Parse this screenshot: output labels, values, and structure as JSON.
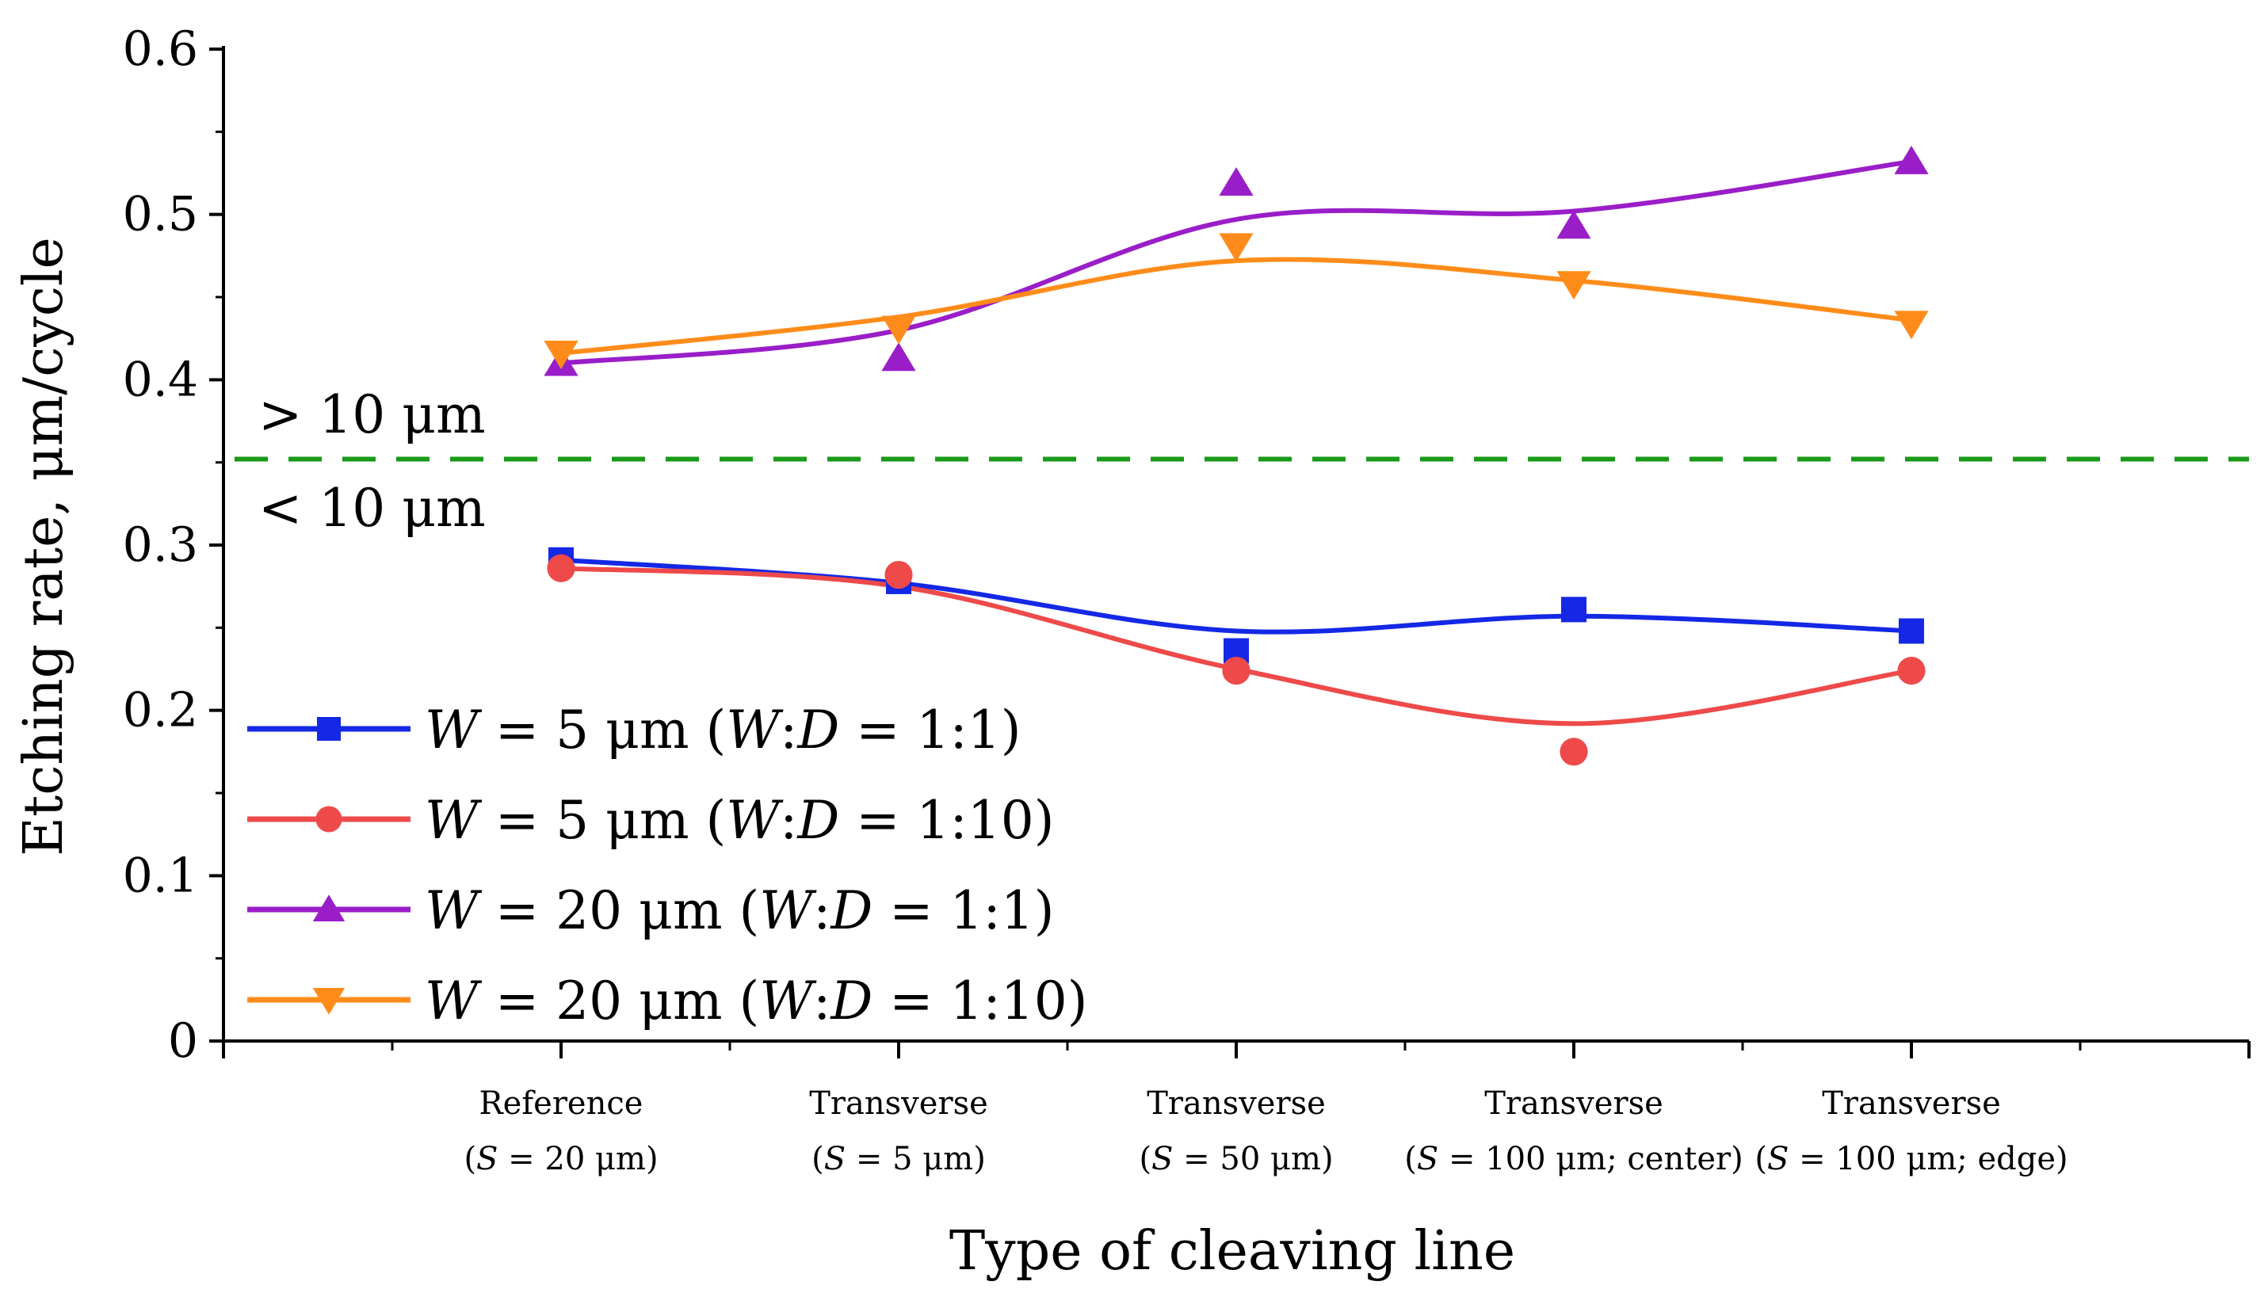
{
  "chart_data": {
    "type": "line",
    "title": "",
    "xlabel": "Type of cleaving line",
    "ylabel": "Etching rate, μm/cycle",
    "ylim": [
      0,
      0.6
    ],
    "yticks": [
      "0",
      "0.1",
      "0.2",
      "0.3",
      "0.4",
      "0.5",
      "0.6"
    ],
    "categories": [
      {
        "line1": "Reference",
        "line2": "(S = 20 μm)"
      },
      {
        "line1": "Transverse",
        "line2": "(S = 5 μm)"
      },
      {
        "line1": "Transverse",
        "line2": "(S = 50 μm)"
      },
      {
        "line1": "Transverse",
        "line2": "(S = 100 μm; center)"
      },
      {
        "line1": "Transverse",
        "line2": "(S = 100 μm; edge)"
      }
    ],
    "threshold": {
      "value": 0.352,
      "color": "#1a9a1a",
      "label_above": "> 10 μm",
      "label_below": "< 10 μm"
    },
    "series": [
      {
        "name": "W = 5 μm (W:D = 1:1)",
        "marker": "square",
        "color": "#1428e6",
        "values": [
          0.291,
          0.278,
          0.236,
          0.261,
          0.248
        ],
        "fit": [
          0.291,
          0.277,
          0.248,
          0.257,
          0.248
        ]
      },
      {
        "name": "W = 5 μm (W:D = 1:10)",
        "marker": "circle",
        "color": "#ee4a4a",
        "values": [
          0.286,
          0.282,
          0.224,
          0.175,
          0.224
        ],
        "fit": [
          0.286,
          0.275,
          0.225,
          0.192,
          0.224
        ]
      },
      {
        "name": "W = 20 μm (W:D = 1:1)",
        "marker": "triangle-up",
        "color": "#9a1ec8",
        "values": [
          0.41,
          0.413,
          0.519,
          0.493,
          0.532
        ],
        "fit": [
          0.41,
          0.43,
          0.497,
          0.502,
          0.532
        ]
      },
      {
        "name": "W = 20 μm (W:D = 1:10)",
        "marker": "triangle-down",
        "color": "#ff8c1a",
        "values": [
          0.416,
          0.431,
          0.481,
          0.458,
          0.434
        ],
        "fit": [
          0.416,
          0.438,
          0.472,
          0.46,
          0.436
        ]
      }
    ],
    "legend": {
      "position": "bottom-left",
      "entries": [
        {
          "italic": "W",
          "mid": " = 5 μm (",
          "italic2": "W",
          "colon": ":",
          "italic3": "D",
          "tail": " = 1:1)"
        },
        {
          "italic": "W",
          "mid": " = 5 μm (",
          "italic2": "W",
          "colon": ":",
          "italic3": "D",
          "tail": " = 1:10)"
        },
        {
          "italic": "W",
          "mid": " = 20 μm (",
          "italic2": "W",
          "colon": ":",
          "italic3": "D",
          "tail": " = 1:1)"
        },
        {
          "italic": "W",
          "mid": " = 20 μm (",
          "italic2": "W",
          "colon": ":",
          "italic3": "D",
          "tail": " = 1:10)"
        }
      ]
    }
  }
}
